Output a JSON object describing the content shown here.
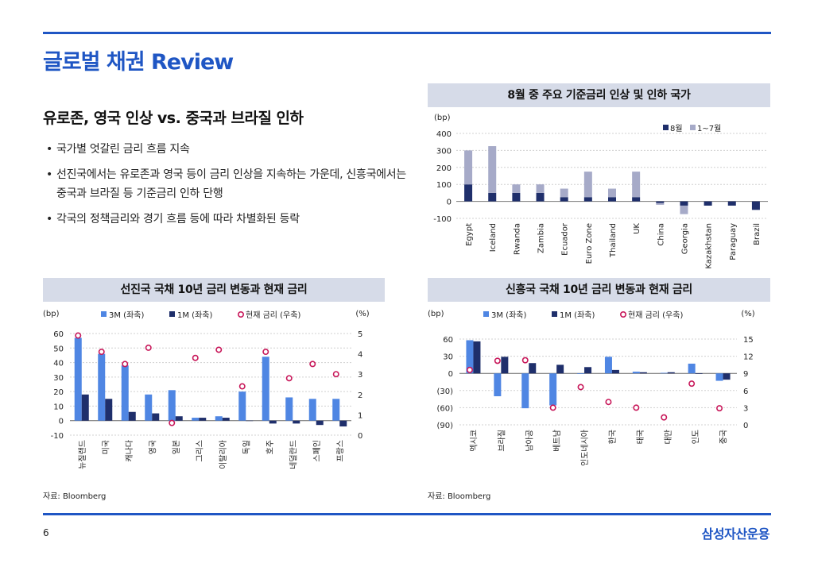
{
  "page": {
    "title": "글로벌 채권 Review",
    "headline": "유로존, 영국 인상 vs. 중국과 브라질 인하",
    "bullets": [
      "국가별 엇갈린 금리 흐름 지속",
      "선진국에서는 유로존과 영국 등이 금리 인상을 지속하는 가운데, 신흥국에서는 중국과 브라질 등 기준금리 인하 단행",
      "각국의 정책금리와 경기 흐름 등에 따라 차별화된 등락"
    ],
    "page_number": "6",
    "brand": "삼성자산운용"
  },
  "colors": {
    "accent": "#1f56c4",
    "navy": "#1f2f6b",
    "lavender": "#a6aac8",
    "blue_bar": "#4f86e3",
    "marker": "#c8185a",
    "title_band": "#d6dbe8"
  },
  "chart_data": [
    {
      "type": "bar",
      "title": "8월 중 주요 기준금리 인상 및 인하 국가",
      "unit_label": "(bp)",
      "stacked": true,
      "categories": [
        "Egypt",
        "Iceland",
        "Rwanda",
        "Zambia",
        "Ecuador",
        "Euro Zone",
        "Thailand",
        "UK",
        "China",
        "Georgia",
        "Kazakhstan",
        "Paraguay",
        "Brazil"
      ],
      "series": [
        {
          "name": "8월",
          "color": "#1f2f6b",
          "values": [
            100,
            50,
            50,
            50,
            25,
            25,
            25,
            25,
            -10,
            -25,
            -25,
            -25,
            -50
          ]
        },
        {
          "name": "1~7월",
          "color": "#a6aac8",
          "values": [
            200,
            275,
            50,
            50,
            50,
            150,
            50,
            150,
            -10,
            -50,
            0,
            0,
            0
          ]
        }
      ],
      "ylim": [
        -100,
        400
      ],
      "yticks": [
        "400",
        "300",
        "200",
        "100",
        "0",
        "-100"
      ],
      "legend_position": "top-right",
      "source": ""
    },
    {
      "type": "bar",
      "title": "선진국 국채 10년 금리 변동과 현재 금리",
      "left_unit": "(bp)",
      "right_unit": "(%)",
      "categories": [
        "뉴질랜드",
        "미국",
        "캐나다",
        "영국",
        "일본",
        "그리스",
        "이탈리아",
        "독일",
        "호주",
        "네덜란드",
        "스페인",
        "프랑스"
      ],
      "series": [
        {
          "name": "3M (좌축)",
          "color": "#4f86e3",
          "values": [
            57,
            46,
            38,
            18,
            21,
            2,
            3,
            20,
            44,
            16,
            15,
            15
          ]
        },
        {
          "name": "1M (좌축)",
          "color": "#1f2f6b",
          "values": [
            18,
            15,
            6,
            5,
            3,
            2,
            2,
            0,
            -2,
            -2,
            -3,
            -4
          ]
        },
        {
          "name": "현재 금리 (우축)",
          "color": "#c8185a",
          "axis": "right",
          "values": [
            4.9,
            4.1,
            3.5,
            4.3,
            0.6,
            3.8,
            4.2,
            2.4,
            4.1,
            2.8,
            3.5,
            3.0
          ]
        }
      ],
      "ylim": [
        -10,
        60
      ],
      "yticks": [
        "60",
        "50",
        "40",
        "30",
        "20",
        "10",
        "0",
        "-10"
      ],
      "y2lim": [
        0,
        5
      ],
      "y2ticks": [
        "5",
        "4",
        "3",
        "2",
        "1",
        "0"
      ],
      "legend_position": "top",
      "source": "자료: Bloomberg"
    },
    {
      "type": "bar",
      "title": "신흥국 국채 10년 금리 변동과 현재 금리",
      "left_unit": "(bp)",
      "right_unit": "(%)",
      "categories": [
        "멕시코",
        "브라질",
        "남아공",
        "베트남",
        "인도네시아",
        "한국",
        "태국",
        "대만",
        "인도",
        "중국"
      ],
      "series": [
        {
          "name": "3M (좌축)",
          "color": "#4f86e3",
          "values": [
            58,
            -40,
            -61,
            -56,
            -1,
            29,
            3,
            1,
            17,
            -13
          ]
        },
        {
          "name": "1M (좌축)",
          "color": "#1f2f6b",
          "values": [
            56,
            29,
            18,
            15,
            11,
            6,
            2,
            2,
            -1,
            -11
          ]
        },
        {
          "name": "현재 금리 (우축)",
          "color": "#c8185a",
          "axis": "right",
          "values": [
            9.6,
            11.2,
            11.3,
            3.0,
            6.6,
            4.0,
            3.0,
            1.3,
            7.2,
            2.9
          ]
        }
      ],
      "ylim": [
        -90,
        60
      ],
      "yticks": [
        "60",
        "30",
        "0",
        "(30)",
        "(60)",
        "(90)"
      ],
      "y2lim": [
        0,
        15
      ],
      "y2ticks": [
        "15",
        "12",
        "9",
        "6",
        "3",
        "0"
      ],
      "legend_position": "top",
      "source": "자료: Bloomberg"
    }
  ]
}
